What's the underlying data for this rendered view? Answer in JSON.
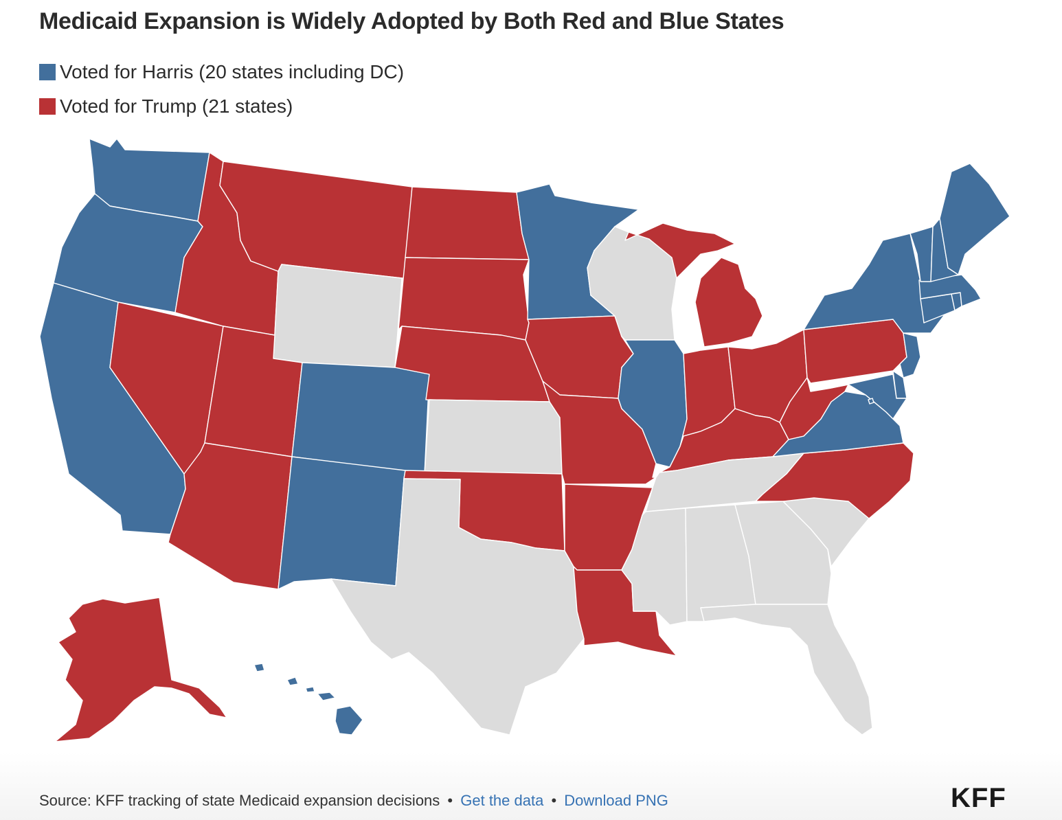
{
  "title": "Medicaid Expansion is Widely Adopted by Both Red and Blue States",
  "colors": {
    "harris": "#426f9c",
    "trump": "#b93235",
    "not_expanded": "#dcdcdc"
  },
  "legend": [
    {
      "key": "harris",
      "label": "Voted for Harris (20 states including DC)"
    },
    {
      "key": "trump",
      "label": "Voted for Trump (21 states)"
    }
  ],
  "states": [
    {
      "abbr": "WA",
      "group": "harris"
    },
    {
      "abbr": "OR",
      "group": "harris"
    },
    {
      "abbr": "CA",
      "group": "harris"
    },
    {
      "abbr": "NV",
      "group": "trump"
    },
    {
      "abbr": "ID",
      "group": "trump"
    },
    {
      "abbr": "MT",
      "group": "trump"
    },
    {
      "abbr": "WY",
      "group": "not_expanded"
    },
    {
      "abbr": "UT",
      "group": "trump"
    },
    {
      "abbr": "AZ",
      "group": "trump"
    },
    {
      "abbr": "CO",
      "group": "harris"
    },
    {
      "abbr": "NM",
      "group": "harris"
    },
    {
      "abbr": "ND",
      "group": "trump"
    },
    {
      "abbr": "SD",
      "group": "trump"
    },
    {
      "abbr": "NE",
      "group": "trump"
    },
    {
      "abbr": "KS",
      "group": "not_expanded"
    },
    {
      "abbr": "OK",
      "group": "trump"
    },
    {
      "abbr": "TX",
      "group": "not_expanded"
    },
    {
      "abbr": "MN",
      "group": "harris"
    },
    {
      "abbr": "IA",
      "group": "trump"
    },
    {
      "abbr": "MO",
      "group": "trump"
    },
    {
      "abbr": "AR",
      "group": "trump"
    },
    {
      "abbr": "LA",
      "group": "trump"
    },
    {
      "abbr": "WI",
      "group": "not_expanded"
    },
    {
      "abbr": "IL",
      "group": "harris"
    },
    {
      "abbr": "MI",
      "group": "trump"
    },
    {
      "abbr": "IN",
      "group": "trump"
    },
    {
      "abbr": "OH",
      "group": "trump"
    },
    {
      "abbr": "KY",
      "group": "trump"
    },
    {
      "abbr": "TN",
      "group": "not_expanded"
    },
    {
      "abbr": "MS",
      "group": "not_expanded"
    },
    {
      "abbr": "AL",
      "group": "not_expanded"
    },
    {
      "abbr": "GA",
      "group": "not_expanded"
    },
    {
      "abbr": "FL",
      "group": "not_expanded"
    },
    {
      "abbr": "SC",
      "group": "not_expanded"
    },
    {
      "abbr": "NC",
      "group": "trump"
    },
    {
      "abbr": "VA",
      "group": "harris"
    },
    {
      "abbr": "WV",
      "group": "trump"
    },
    {
      "abbr": "PA",
      "group": "trump"
    },
    {
      "abbr": "NY",
      "group": "harris"
    },
    {
      "abbr": "NJ",
      "group": "harris"
    },
    {
      "abbr": "DE",
      "group": "harris"
    },
    {
      "abbr": "MD",
      "group": "harris"
    },
    {
      "abbr": "DC",
      "group": "harris"
    },
    {
      "abbr": "CT",
      "group": "harris"
    },
    {
      "abbr": "RI",
      "group": "harris"
    },
    {
      "abbr": "MA",
      "group": "harris"
    },
    {
      "abbr": "VT",
      "group": "harris"
    },
    {
      "abbr": "NH",
      "group": "harris"
    },
    {
      "abbr": "ME",
      "group": "harris"
    },
    {
      "abbr": "AK",
      "group": "trump"
    },
    {
      "abbr": "HI",
      "group": "harris"
    }
  ],
  "footer": {
    "source": "Source: KFF tracking of state Medicaid expansion decisions",
    "separator": "•",
    "get_data": "Get the data",
    "download": "Download PNG",
    "logo": "KFF"
  }
}
